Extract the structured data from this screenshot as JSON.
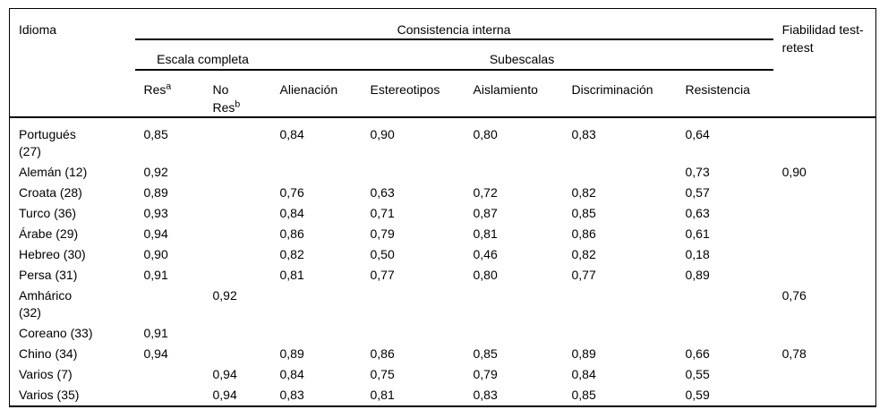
{
  "meta": {
    "colors": {
      "background": "#ffffff",
      "text": "#000000",
      "border": "#000000"
    }
  },
  "table": {
    "header": {
      "idioma": "Idioma",
      "consistencia_interna": "Consistencia interna",
      "fiabilidad": "Fiabilidad test-retest",
      "escala_completa": "Escala completa",
      "subescalas": "Subescalas",
      "res": "Res",
      "res_note": "a",
      "no_res_line1": "No",
      "no_res_line2": "Res",
      "no_res_note": "b",
      "subscale_columns": [
        "Alienación",
        "Estereotipos",
        "Aislamiento",
        "Discriminación",
        "Resistencia"
      ]
    },
    "rows": [
      {
        "idioma": "Portugués\n(27)",
        "res": "0,85",
        "no_res": "",
        "alienacion": "0,84",
        "estereotipos": "0,90",
        "aislamiento": "0,80",
        "discriminacion": "0,83",
        "resistencia": "0,64",
        "fiabilidad": ""
      },
      {
        "idioma": "Alemán (12)",
        "res": "0,92",
        "no_res": "",
        "alienacion": "",
        "estereotipos": "",
        "aislamiento": "",
        "discriminacion": "",
        "resistencia": "0,73",
        "fiabilidad": "0,90"
      },
      {
        "idioma": "Croata (28)",
        "res": "0,89",
        "no_res": "",
        "alienacion": "0,76",
        "estereotipos": "0,63",
        "aislamiento": "0,72",
        "discriminacion": "0,82",
        "resistencia": "0,57",
        "fiabilidad": ""
      },
      {
        "idioma": "Turco (36)",
        "res": "0,93",
        "no_res": "",
        "alienacion": "0,84",
        "estereotipos": "0,71",
        "aislamiento": "0,87",
        "discriminacion": "0,85",
        "resistencia": "0,63",
        "fiabilidad": ""
      },
      {
        "idioma": "Árabe (29)",
        "res": "0,94",
        "no_res": "",
        "alienacion": "0,86",
        "estereotipos": "0,79",
        "aislamiento": "0,81",
        "discriminacion": "0,86",
        "resistencia": "0,61",
        "fiabilidad": ""
      },
      {
        "idioma": "Hebreo (30)",
        "res": "0,90",
        "no_res": "",
        "alienacion": "0,82",
        "estereotipos": "0,50",
        "aislamiento": "0,46",
        "discriminacion": "0,82",
        "resistencia": "0,18",
        "fiabilidad": ""
      },
      {
        "idioma": "Persa (31)",
        "res": "0,91",
        "no_res": "",
        "alienacion": "0,81",
        "estereotipos": "0,77",
        "aislamiento": "0,80",
        "discriminacion": "0,77",
        "resistencia": "0,89",
        "fiabilidad": ""
      },
      {
        "idioma": "Amhárico\n(32)",
        "res": "",
        "no_res": "0,92",
        "alienacion": "",
        "estereotipos": "",
        "aislamiento": "",
        "discriminacion": "",
        "resistencia": "",
        "fiabilidad": "0,76"
      },
      {
        "idioma": "Coreano (33)",
        "res": "0,91",
        "no_res": "",
        "alienacion": "",
        "estereotipos": "",
        "aislamiento": "",
        "discriminacion": "",
        "resistencia": "",
        "fiabilidad": ""
      },
      {
        "idioma": "Chino (34)",
        "res": "0,94",
        "no_res": "",
        "alienacion": "0,89",
        "estereotipos": "0,86",
        "aislamiento": "0,85",
        "discriminacion": "0,89",
        "resistencia": "0,66",
        "fiabilidad": "0,78"
      },
      {
        "idioma": "Varios (7)",
        "res": "",
        "no_res": "0,94",
        "alienacion": "0,84",
        "estereotipos": "0,75",
        "aislamiento": "0,79",
        "discriminacion": "0,84",
        "resistencia": "0,55",
        "fiabilidad": ""
      },
      {
        "idioma": "Varios (35)",
        "res": "",
        "no_res": "0,94",
        "alienacion": "0,83",
        "estereotipos": "0,81",
        "aislamiento": "0,83",
        "discriminacion": "0,85",
        "resistencia": "0,59",
        "fiabilidad": ""
      }
    ]
  }
}
